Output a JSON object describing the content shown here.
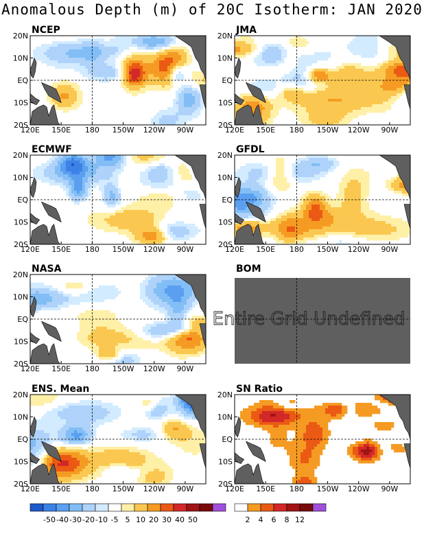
{
  "title": "Anomalous Depth (m) of 20C Isotherm: JAN 2020",
  "axes": {
    "x_ticks": [
      "120E",
      "150E",
      "180",
      "150W",
      "120W",
      "90W"
    ],
    "x_tick_lon": [
      120,
      150,
      180,
      210,
      240,
      270
    ],
    "y_ticks": [
      "20N",
      "10N",
      "EQ",
      "10S",
      "20S"
    ],
    "y_tick_lat": [
      20,
      10,
      0,
      -10,
      -20
    ],
    "lon_range": [
      120,
      290
    ],
    "lat_range": [
      -20,
      20
    ],
    "dashed_grid": {
      "lon": 180,
      "lat": 0
    }
  },
  "colors": {
    "land": "#5f5f5f",
    "undefined_fill": "#5f5f5f",
    "anomaly": [
      "#1e5ac8",
      "#3c82e6",
      "#5a9ff0",
      "#82bef5",
      "#aed2fa",
      "#d2ebff",
      "#ffffff",
      "#fff0a8",
      "#fac850",
      "#f59b23",
      "#eb5a14",
      "#d22828",
      "#a01414",
      "#780a0a",
      "#a050dc"
    ],
    "sn_ratio": [
      "#ffffff",
      "#f59b23",
      "#eb5a14",
      "#d22828",
      "#a01414",
      "#780a0a",
      "#a050dc"
    ]
  },
  "panels": [
    {
      "id": "NCEP",
      "title": "NCEP",
      "defined": true,
      "seed": 11,
      "warm_east": 0.1
    },
    {
      "id": "JMA",
      "title": "JMA",
      "defined": true,
      "seed": 23,
      "warm_east": 0.9
    },
    {
      "id": "ECMWF",
      "title": "ECMWF",
      "defined": true,
      "seed": 37,
      "warm_east": 0.6
    },
    {
      "id": "GFDL",
      "title": "GFDL",
      "defined": true,
      "seed": 41,
      "warm_east": 0.8
    },
    {
      "id": "NASA",
      "title": "NASA",
      "defined": true,
      "seed": 53,
      "warm_east": 0.5
    },
    {
      "id": "BOM",
      "title": "BOM",
      "defined": false,
      "undefined_text": "Entire Grid Undefined"
    },
    {
      "id": "ENS",
      "title": "ENS. Mean",
      "defined": true,
      "seed": 67,
      "warm_east": 0.3
    },
    {
      "id": "SN",
      "title": "SN Ratio",
      "defined": true,
      "seed": 79,
      "mode": "sn"
    }
  ],
  "legend_anomaly": {
    "labels": [
      "-50",
      "-40",
      "-30",
      "-20",
      "-10",
      "-5",
      "5",
      "10",
      "20",
      "30",
      "40",
      "50"
    ]
  },
  "legend_sn": {
    "labels": [
      "2",
      "4",
      "6",
      "8",
      "12"
    ]
  },
  "chart_data": [
    {
      "type": "heatmap",
      "title": "NCEP",
      "variable": "20C isotherm depth anomaly (m)",
      "x": [
        "120E",
        "150E",
        "180",
        "150W",
        "120W",
        "90W"
      ],
      "y": [
        "20N",
        "10N",
        "EQ",
        "10S",
        "20S"
      ]
    },
    {
      "type": "heatmap",
      "title": "JMA",
      "variable": "20C isotherm depth anomaly (m)",
      "x": [
        "120E",
        "150E",
        "180",
        "150W",
        "120W",
        "90W"
      ],
      "y": [
        "20N",
        "10N",
        "EQ",
        "10S",
        "20S"
      ]
    },
    {
      "type": "heatmap",
      "title": "ECMWF",
      "variable": "20C isotherm depth anomaly (m)",
      "x": [
        "120E",
        "150E",
        "180",
        "150W",
        "120W",
        "90W"
      ],
      "y": [
        "20N",
        "10N",
        "EQ",
        "10S",
        "20S"
      ]
    },
    {
      "type": "heatmap",
      "title": "GFDL",
      "variable": "20C isotherm depth anomaly (m)",
      "x": [
        "120E",
        "150E",
        "180",
        "150W",
        "120W",
        "90W"
      ],
      "y": [
        "20N",
        "10N",
        "EQ",
        "10S",
        "20S"
      ]
    },
    {
      "type": "heatmap",
      "title": "NASA",
      "variable": "20C isotherm depth anomaly (m)",
      "x": [
        "120E",
        "150E",
        "180",
        "150W",
        "120W",
        "90W"
      ],
      "y": [
        "20N",
        "10N",
        "EQ",
        "10S",
        "20S"
      ]
    },
    {
      "type": "heatmap",
      "title": "BOM",
      "note": "Entire Grid Undefined"
    },
    {
      "type": "heatmap",
      "title": "ENS. Mean",
      "variable": "20C isotherm depth anomaly (m)",
      "x": [
        "120E",
        "150E",
        "180",
        "150W",
        "120W",
        "90W"
      ],
      "y": [
        "20N",
        "10N",
        "EQ",
        "10S",
        "20S"
      ]
    },
    {
      "type": "heatmap",
      "title": "SN Ratio",
      "variable": "signal-to-noise ratio",
      "x": [
        "120E",
        "150E",
        "180",
        "150W",
        "120W",
        "90W"
      ],
      "y": [
        "20N",
        "10N",
        "EQ",
        "10S",
        "20S"
      ]
    }
  ]
}
